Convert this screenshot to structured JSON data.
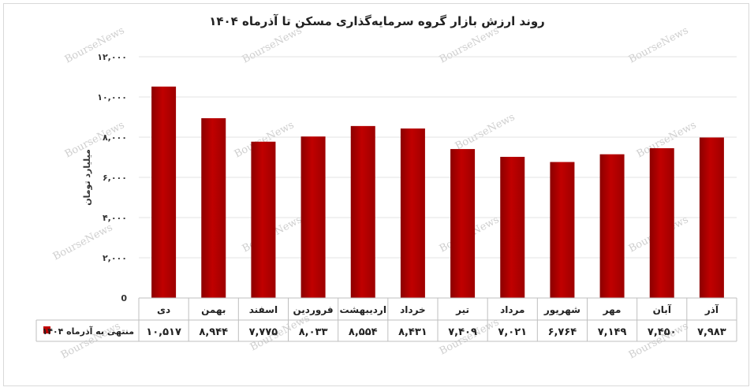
{
  "title": "روند ارزش بازار گروه سرمایه‌گذاری مسکن تا آذرماه  ۱۴۰۴",
  "watermark": "BourseNews",
  "chart_data": {
    "type": "bar",
    "title": "روند ارزش بازار گروه سرمایه‌گذاری مسکن تا آذرماه  ۱۴۰۴",
    "ylabel": "میلیارد تومان",
    "xlabel": "",
    "ylim": [
      0,
      12000
    ],
    "yticks": [
      0,
      2000,
      4000,
      6000,
      8000,
      10000,
      12000
    ],
    "ytick_labels": [
      "0",
      "۲,۰۰۰",
      "۴,۰۰۰",
      "۶,۰۰۰",
      "۸,۰۰۰",
      "۱۰,۰۰۰",
      "۱۲,۰۰۰"
    ],
    "grid": true,
    "categories": [
      "دی",
      "بهمن",
      "اسفند",
      "فروردین",
      "اردیبهشت",
      "خرداد",
      "تیر",
      "مرداد",
      "شهریور",
      "مهر",
      "آبان",
      "آذر"
    ],
    "series": [
      {
        "name": "منتهی به آذرماه ۱۴۰۴",
        "values": [
          10517,
          8944,
          7775,
          8033,
          8554,
          8431,
          7409,
          7021,
          6764,
          7149,
          7450,
          7983
        ],
        "value_labels": [
          "۱۰,۵۱۷",
          "۸,۹۴۴",
          "۷,۷۷۵",
          "۸,۰۳۳",
          "۸,۵۵۴",
          "۸,۴۳۱",
          "۷,۴۰۹",
          "۷,۰۲۱",
          "۶,۷۶۴",
          "۷,۱۴۹",
          "۷,۴۵۰",
          "۷,۹۸۳"
        ],
        "color": "#c00000"
      }
    ],
    "legend": "data-table-left"
  }
}
